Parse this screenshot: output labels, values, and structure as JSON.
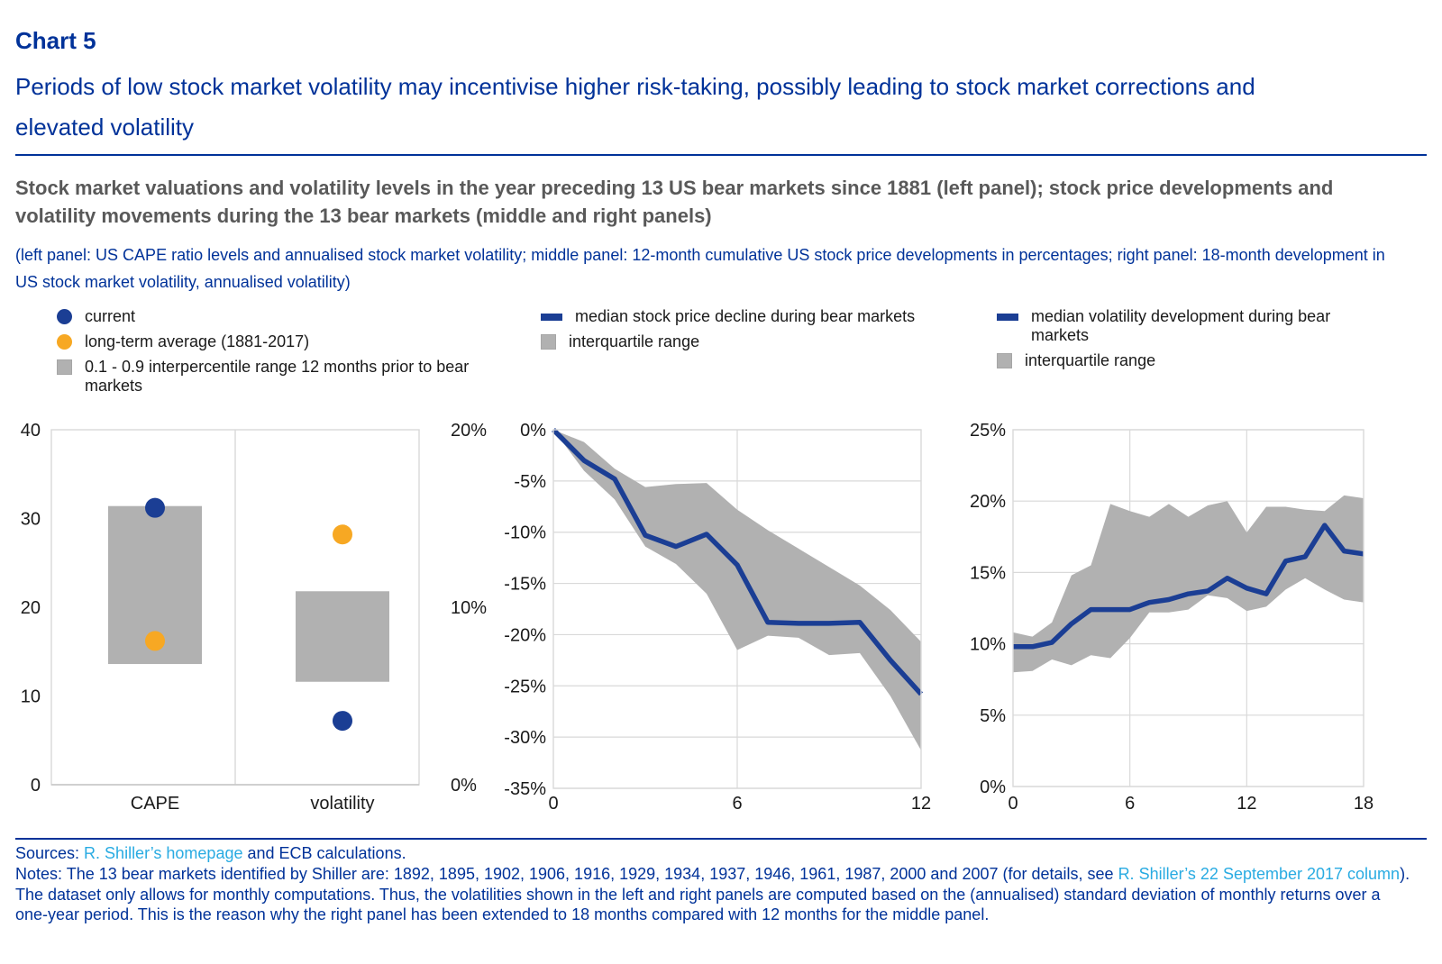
{
  "colors": {
    "navy": "#003299",
    "chart_blue": "#1B3E94",
    "orange": "#F7A823",
    "band_gray": "#B1B1B1",
    "heading_gray": "#595959",
    "link_blue": "#29ABE2",
    "grid": "#D9D9D9",
    "tick_text": "#1A1A1A"
  },
  "header": {
    "chart_label": "Chart 5",
    "title": "Periods of low stock market volatility may incentivise higher risk-taking, possibly leading to stock market corrections and elevated volatility",
    "description": "Stock market valuations and volatility levels in the year preceding 13 US bear markets since 1881 (left panel); stock price developments and volatility movements during the 13 bear markets (middle and right panels)",
    "subdescription": "(left panel: US CAPE ratio levels and annualised stock market volatility; middle panel: 12-month cumulative US stock price developments in percentages; right panel: 18-month development in US stock market volatility, annualised volatility)"
  },
  "legends": {
    "left": [
      {
        "marker": "circle",
        "color": "#1B3E94",
        "label": "current"
      },
      {
        "marker": "circle",
        "color": "#F7A823",
        "label": "long-term average (1881-2017)"
      },
      {
        "marker": "square",
        "color": "#B1B1B1",
        "label": "0.1 - 0.9 interpercentile range 12 months prior to bear markets"
      }
    ],
    "middle": [
      {
        "marker": "dash",
        "color": "#1B3E94",
        "label": "median stock price decline during bear markets"
      },
      {
        "marker": "square",
        "color": "#B1B1B1",
        "label": "interquartile range"
      }
    ],
    "right": [
      {
        "marker": "dash",
        "color": "#1B3E94",
        "label": "median volatility development during bear markets"
      },
      {
        "marker": "square",
        "color": "#B1B1B1",
        "label": "interquartile range"
      }
    ]
  },
  "chart_data": [
    {
      "type": "scatter",
      "panel": "left",
      "categories": [
        "CAPE",
        "volatility"
      ],
      "left_axis": {
        "range": [
          0,
          40
        ],
        "tick_values": [
          40,
          30,
          20,
          10,
          0
        ],
        "tick_labels": [
          "40",
          "30",
          "20",
          "10",
          "0"
        ]
      },
      "right_axis": {
        "range": [
          0,
          20
        ],
        "tick_values": [
          20,
          10,
          0
        ],
        "tick_labels": [
          "20%",
          "10%",
          "0%"
        ]
      },
      "points": [
        {
          "category": "CAPE",
          "axis": "left",
          "current": 31.2,
          "long_term_average": 16.2,
          "interpercentile_range": [
            13.6,
            31.4
          ]
        },
        {
          "category": "volatility",
          "axis": "right",
          "current": 3.6,
          "long_term_average": 14.1,
          "interpercentile_range": [
            5.8,
            10.9
          ]
        }
      ],
      "grid": false
    },
    {
      "type": "area",
      "panel": "middle",
      "x": [
        0,
        1,
        2,
        3,
        4,
        5,
        6,
        7,
        8,
        9,
        10,
        11,
        12
      ],
      "x_tick_values": [
        0,
        6,
        12
      ],
      "x_tick_labels": [
        "0",
        "6",
        "12"
      ],
      "ylim": [
        -35,
        0
      ],
      "y_tick_values": [
        0,
        -5,
        -10,
        -15,
        -20,
        -25,
        -30,
        -35
      ],
      "y_tick_labels": [
        "0%",
        "-5%",
        "-10%",
        "-15%",
        "-20%",
        "-25%",
        "-30%",
        "-35%"
      ],
      "median": [
        0,
        -3.0,
        -4.8,
        -10.3,
        -11.4,
        -10.2,
        -13.2,
        -18.8,
        -18.9,
        -18.9,
        -18.8,
        -22.5,
        -25.8
      ],
      "band_upper": [
        0,
        -1.2,
        -3.8,
        -5.6,
        -5.3,
        -5.2,
        -7.8,
        -9.8,
        -11.6,
        -13.4,
        -15.2,
        -17.6,
        -20.7
      ],
      "band_lower": [
        0,
        -4.0,
        -6.8,
        -11.4,
        -13.1,
        -16.0,
        -21.5,
        -20.1,
        -20.3,
        -22.0,
        -21.8,
        -26.0,
        -31.3
      ],
      "grid": true
    },
    {
      "type": "area",
      "panel": "right",
      "x": [
        0,
        1,
        2,
        3,
        4,
        5,
        6,
        7,
        8,
        9,
        10,
        11,
        12,
        13,
        14,
        15,
        16,
        17,
        18
      ],
      "x_tick_values": [
        0,
        6,
        12,
        18
      ],
      "x_tick_labels": [
        "0",
        "6",
        "12",
        "18"
      ],
      "ylim": [
        0,
        25
      ],
      "y_tick_values": [
        25,
        20,
        15,
        10,
        5,
        0
      ],
      "y_tick_labels": [
        "25%",
        "20%",
        "15%",
        "10%",
        "5%",
        "0%"
      ],
      "median": [
        9.8,
        9.8,
        10.1,
        11.4,
        12.4,
        12.4,
        12.4,
        12.9,
        13.1,
        13.5,
        13.7,
        14.6,
        13.9,
        13.5,
        15.8,
        16.1,
        18.3,
        16.5,
        16.3
      ],
      "band_upper": [
        10.8,
        10.5,
        11.5,
        14.8,
        15.5,
        19.8,
        19.3,
        18.9,
        19.8,
        18.9,
        19.7,
        20.0,
        17.8,
        19.6,
        19.6,
        19.4,
        19.3,
        20.4,
        20.2
      ],
      "band_lower": [
        8.0,
        8.1,
        8.9,
        8.5,
        9.2,
        9.0,
        10.4,
        12.2,
        12.2,
        12.4,
        13.4,
        13.2,
        12.3,
        12.6,
        13.8,
        14.6,
        13.8,
        13.1,
        12.9
      ],
      "grid": true
    }
  ],
  "footer": {
    "sources_segments": [
      {
        "text": "Sources: ",
        "link": false
      },
      {
        "text": "R. Shiller’s homepage",
        "link": true,
        "name": "shiller-homepage-link"
      },
      {
        "text": " and ECB calculations.",
        "link": false
      }
    ],
    "notes_segments": [
      {
        "text": "Notes: The 13 bear markets identified by Shiller are: 1892, 1895, 1902, 1906, 1916, 1929, 1934, 1937, 1946, 1961, 1987, 2000 and 2007 (for details, see ",
        "link": false
      },
      {
        "text": "R. Shiller’s 22 September 2017 column",
        "link": true,
        "name": "shiller-column-link"
      },
      {
        "text": "). The dataset only allows for monthly computations. Thus, the volatilities shown in the left and right panels are computed based on the (annualised) standard deviation of monthly returns over a one-year period. This is the reason why the right panel has been extended to 18 months compared with 12 months for the middle panel.",
        "link": false
      }
    ]
  }
}
